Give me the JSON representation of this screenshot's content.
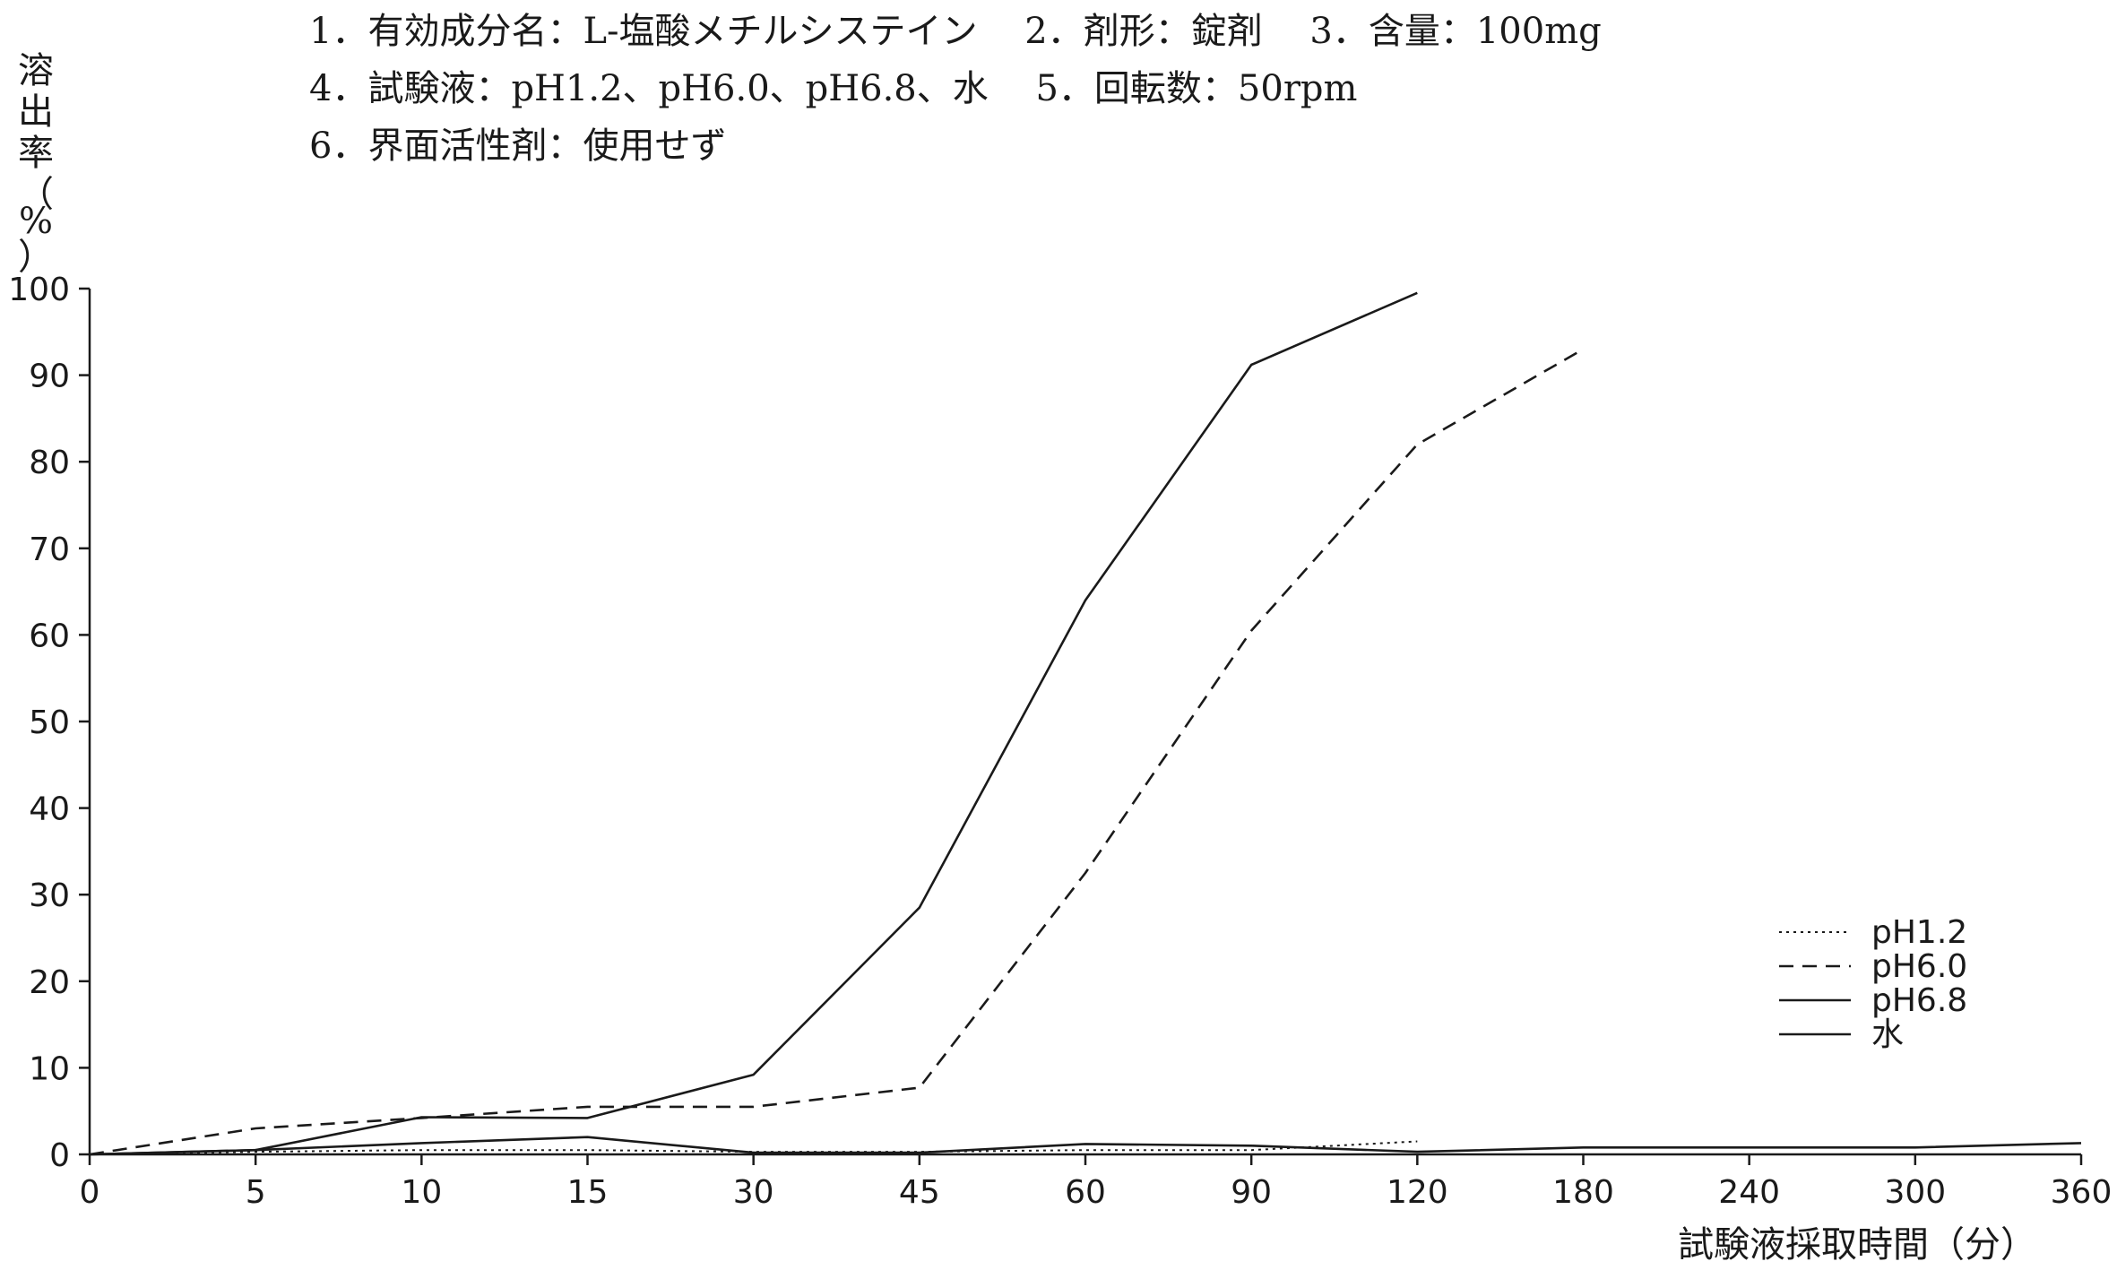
{
  "header": {
    "line1": "1．有効成分名：L-塩酸メチルシステイン　 2．剤形：錠剤　 3．含量：100mg",
    "line2": "4．試験液：pH1.2、pH6.0、pH6.8、水　 5．回転数：50rpm",
    "line3": "6．界面活性剤：使用せず"
  },
  "chart_data": {
    "type": "line",
    "title": "",
    "ylabel": "溶出率（%）",
    "xlabel": "試験液採取時間（分）",
    "categories": [
      "0",
      "5",
      "10",
      "15",
      "30",
      "45",
      "60",
      "90",
      "120",
      "180",
      "240",
      "300",
      "360"
    ],
    "yticks": [
      "0",
      "10",
      "20",
      "30",
      "40",
      "50",
      "60",
      "70",
      "80",
      "90",
      "100"
    ],
    "ylim": [
      0,
      100
    ],
    "grid": false,
    "legend_position": "bottom-right",
    "series": [
      {
        "name": "pH1.2",
        "style": "dotted",
        "color": "#1a1a1a",
        "values": [
          0,
          0.3,
          0.5,
          0.5,
          0.3,
          0.3,
          0.5,
          0.5,
          1.5,
          null,
          null,
          null,
          null
        ]
      },
      {
        "name": "pH6.0",
        "style": "dashed",
        "color": "#1a1a1a",
        "values": [
          0,
          3,
          4.2,
          5.5,
          5.5,
          7.7,
          32.5,
          60.5,
          82,
          93,
          null,
          null,
          null
        ]
      },
      {
        "name": "pH6.8",
        "style": "solid",
        "color": "#1a1a1a",
        "values": [
          0,
          0.5,
          4.3,
          4.2,
          9.2,
          28.5,
          64,
          91.2,
          99.5,
          null,
          null,
          null,
          null
        ]
      },
      {
        "name": "水",
        "style": "solid",
        "color": "#1a1a1a",
        "values": [
          0,
          0.5,
          1.3,
          2,
          0.2,
          0.2,
          1.2,
          1,
          0.3,
          0.8,
          0.8,
          0.8,
          1.3
        ]
      }
    ]
  }
}
